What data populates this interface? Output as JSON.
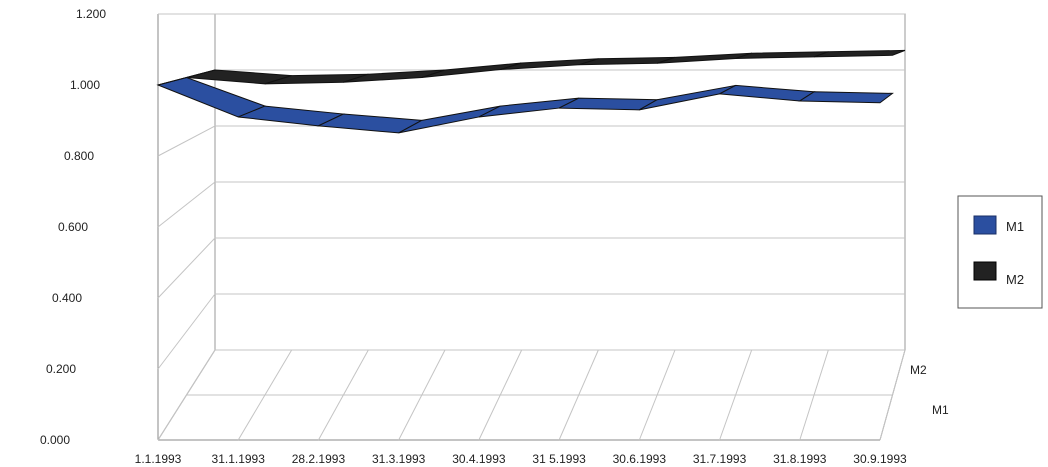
{
  "chart_data": {
    "type": "line",
    "style": "3d-ribbon",
    "categories": [
      "1.1.1993",
      "31.1.1993",
      "28.2.1993",
      "31.3.1993",
      "30.4.1993",
      "31 5.1993",
      "30.6.1993",
      "31.7.1993",
      "31.8.1993",
      "30.9.1993"
    ],
    "series": [
      {
        "name": "M1",
        "color": "#2b4fa0",
        "values": [
          1.0,
          0.91,
          0.885,
          0.865,
          0.91,
          0.935,
          0.93,
          0.975,
          0.955,
          0.95
        ]
      },
      {
        "name": "M2",
        "color": "#222222",
        "values": [
          1.0,
          0.98,
          0.985,
          1.0,
          1.025,
          1.04,
          1.045,
          1.06,
          1.065,
          1.07
        ]
      }
    ],
    "y_ticks": [
      "0.000",
      "0.200",
      "0.400",
      "0.600",
      "0.800",
      "1.000",
      "1.200"
    ],
    "ylim": [
      0,
      1.2
    ],
    "depth_labels": [
      "M2",
      "M1"
    ],
    "grid": true,
    "legend": {
      "position": "right",
      "entries": [
        "M1",
        "M2"
      ]
    },
    "title": "",
    "xlabel": "",
    "ylabel": ""
  }
}
